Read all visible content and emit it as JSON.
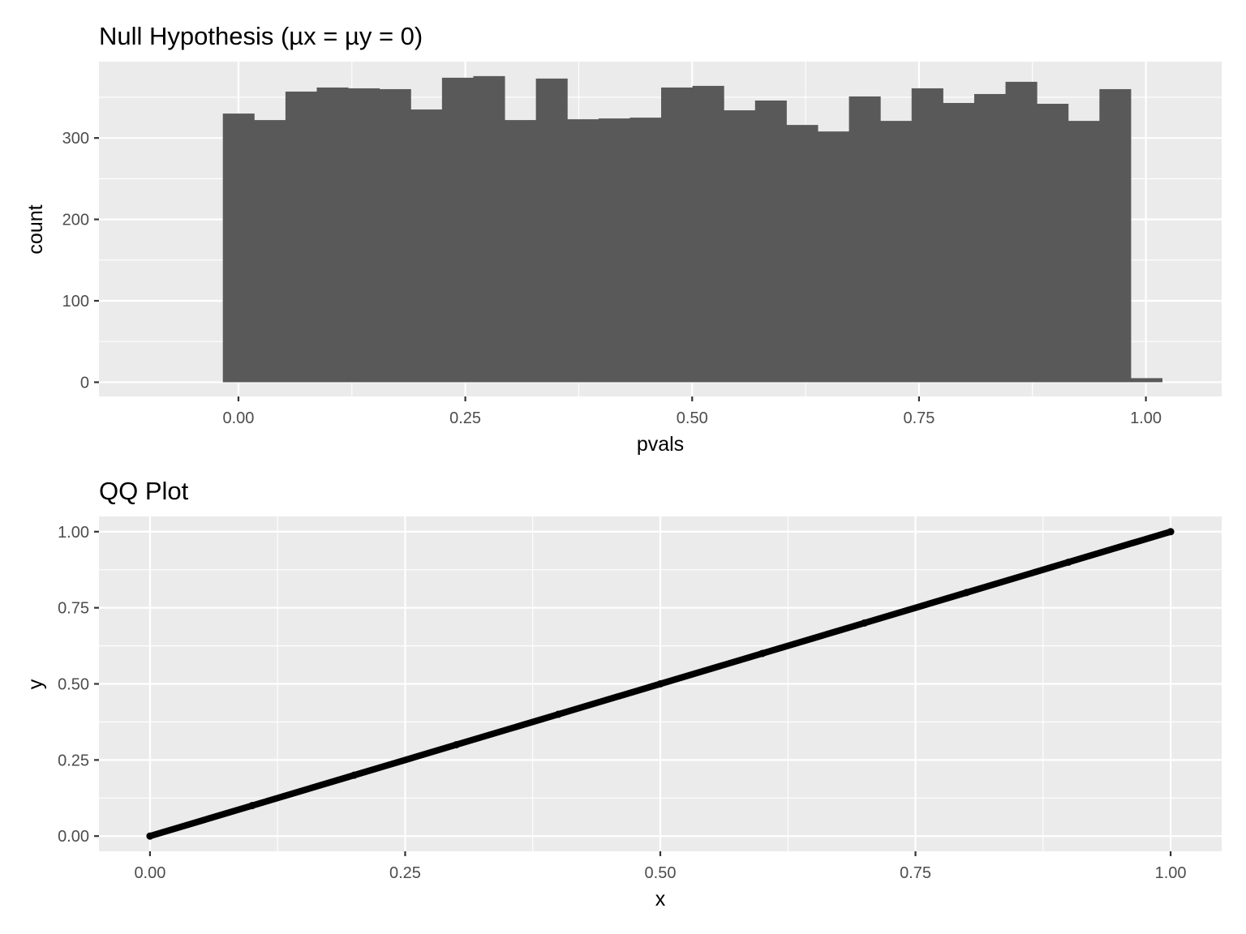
{
  "chart_data": [
    {
      "type": "bar",
      "title": "Null Hypothesis (µx = µy = 0)",
      "xlabel": "pvals",
      "ylabel": "count",
      "bin_width": 0.0345,
      "bin_start": -0.0172,
      "values": [
        330,
        322,
        357,
        362,
        361,
        360,
        335,
        374,
        376,
        322,
        373,
        323,
        324,
        325,
        362,
        364,
        334,
        346,
        316,
        308,
        351,
        321,
        361,
        343,
        354,
        369,
        342,
        321,
        360,
        5
      ],
      "xlim": [
        -0.1537,
        1.0835
      ],
      "ylim": [
        -17.5,
        393.8
      ],
      "x_ticks": [
        0,
        0.25,
        0.5,
        0.75,
        1
      ],
      "x_tick_labels": [
        "0.00",
        "0.25",
        "0.50",
        "0.75",
        "1.00"
      ],
      "y_ticks": [
        0,
        100,
        200,
        300
      ],
      "y_tick_labels": [
        "0",
        "100",
        "200",
        "300"
      ],
      "grid": true
    },
    {
      "type": "scatter",
      "title": "QQ Plot",
      "xlabel": "x",
      "ylabel": "y",
      "x": [
        0,
        0.1,
        0.2,
        0.3,
        0.4,
        0.5,
        0.6,
        0.7,
        0.8,
        0.9,
        1.0
      ],
      "y": [
        0,
        0.1,
        0.2,
        0.3,
        0.4,
        0.5,
        0.6,
        0.7,
        0.8,
        0.9,
        1.0
      ],
      "xlim": [
        -0.05,
        1.05
      ],
      "ylim": [
        -0.05,
        1.05
      ],
      "x_ticks": [
        0,
        0.25,
        0.5,
        0.75,
        1
      ],
      "x_tick_labels": [
        "0.00",
        "0.25",
        "0.50",
        "0.75",
        "1.00"
      ],
      "y_ticks": [
        0,
        0.25,
        0.5,
        0.75,
        1
      ],
      "y_tick_labels": [
        "0.00",
        "0.25",
        "0.50",
        "0.75",
        "1.00"
      ],
      "grid": true
    }
  ]
}
